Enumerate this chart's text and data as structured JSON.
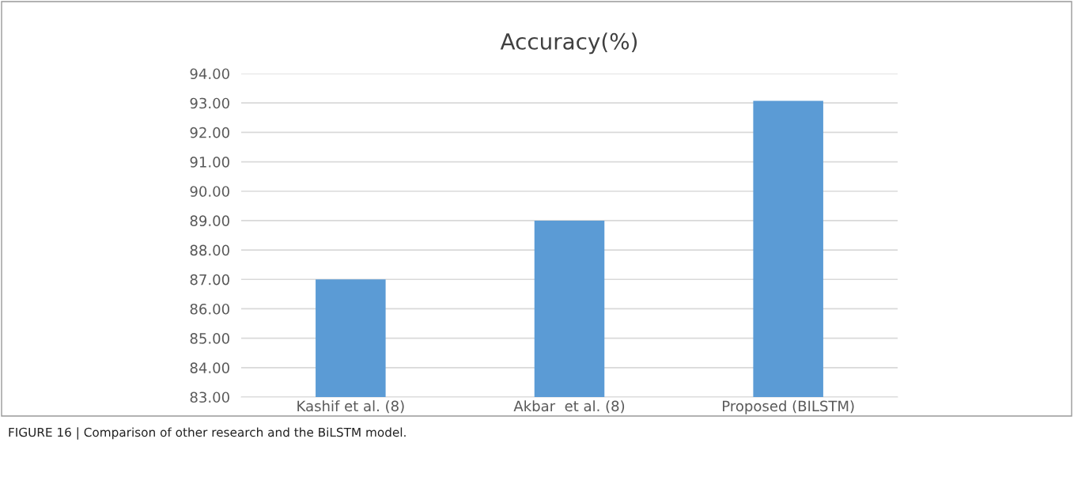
{
  "chart_data": {
    "type": "bar",
    "title": "Accuracy(%)",
    "categories": [
      "Kashif et al. (8)",
      "Akbar  et al. (8)",
      "Proposed (BILSTM)"
    ],
    "values": [
      87,
      89,
      93.07
    ],
    "color": "#5b9bd5",
    "ylim": [
      83,
      94
    ],
    "yticks": [
      {
        "value": 83,
        "label": "83.00"
      },
      {
        "value": 84,
        "label": "84.00"
      },
      {
        "value": 85,
        "label": "85.00"
      },
      {
        "value": 86,
        "label": "86.00"
      },
      {
        "value": 87,
        "label": "87.00"
      },
      {
        "value": 88,
        "label": "88.00"
      },
      {
        "value": 89,
        "label": "89.00"
      },
      {
        "value": 90,
        "label": "90.00"
      },
      {
        "value": 91,
        "label": "91.00"
      },
      {
        "value": 92,
        "label": "92.00"
      },
      {
        "value": 93,
        "label": "93.00"
      },
      {
        "value": 94,
        "label": "94.00"
      }
    ],
    "grid": "y",
    "annotations": [
      "FIGURE 16 | Comparison of other research and the BiLSTM model."
    ]
  }
}
